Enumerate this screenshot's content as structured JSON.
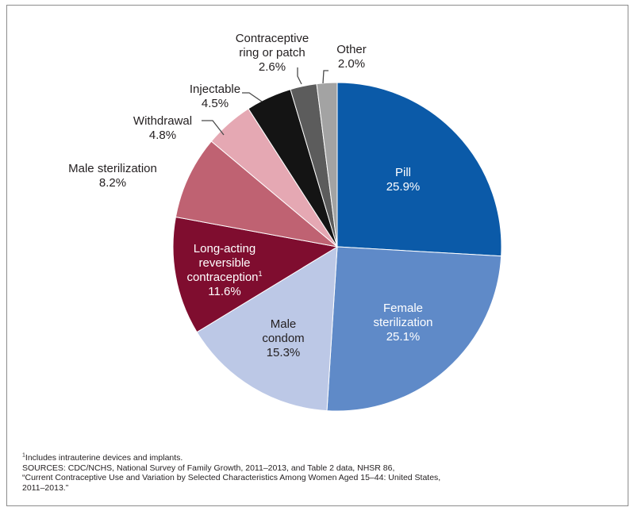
{
  "chart_data": {
    "type": "pie",
    "title": "",
    "start_angle_deg": 0,
    "direction": "clockwise",
    "slices": [
      {
        "name": "Pill",
        "value": 25.9,
        "label_lines": [
          "Pill"
        ],
        "value_label": "25.9%",
        "color": "#0b5aa8",
        "label_color": "#ffffff"
      },
      {
        "name": "Female sterilization",
        "value": 25.1,
        "label_lines": [
          "Female",
          "sterilization"
        ],
        "value_label": "25.1%",
        "color": "#5f8ac8",
        "label_color": "#ffffff"
      },
      {
        "name": "Male condom",
        "value": 15.3,
        "label_lines": [
          "Male",
          "condom"
        ],
        "value_label": "15.3%",
        "color": "#bcc8e6",
        "label_color": "#231f20"
      },
      {
        "name": "Long-acting reversible contraception",
        "value": 11.6,
        "label_lines": [
          "Long-acting",
          "reversible",
          "contraception"
        ],
        "label_sup": "1",
        "value_label": "11.6%",
        "color": "#7f0d2f",
        "label_color": "#ffffff"
      },
      {
        "name": "Male sterilization",
        "value": 8.2,
        "label_lines": [
          "Male sterilization"
        ],
        "value_label": "8.2%",
        "color": "#bf6272",
        "label_color": "#231f20"
      },
      {
        "name": "Withdrawal",
        "value": 4.8,
        "label_lines": [
          "Withdrawal"
        ],
        "value_label": "4.8%",
        "color": "#e5a8b3",
        "label_color": "#231f20"
      },
      {
        "name": "Injectable",
        "value": 4.5,
        "label_lines": [
          "Injectable"
        ],
        "value_label": "4.5%",
        "color": "#141414",
        "label_color": "#231f20"
      },
      {
        "name": "Contraceptive ring or patch",
        "value": 2.6,
        "label_lines": [
          "Contraceptive",
          "ring or patch"
        ],
        "value_label": "2.6%",
        "color": "#5c5c5c",
        "label_color": "#231f20"
      },
      {
        "name": "Other",
        "value": 2.0,
        "label_lines": [
          "Other"
        ],
        "value_label": "2.0%",
        "color": "#a3a3a3",
        "label_color": "#231f20"
      }
    ]
  },
  "footnotes": {
    "sup_mark": "1",
    "note1": "Includes intrauterine devices and implants.",
    "sources_line1": "SOURCES: CDC/NCHS, National Survey of Family Growth, 2011–2013, and Table 2 data, NHSR 86,",
    "sources_line2": "“Current Contraceptive Use and Variation by Selected Characteristics Among Women Aged 15–44: United States,",
    "sources_line3": "2011–2013.”"
  }
}
